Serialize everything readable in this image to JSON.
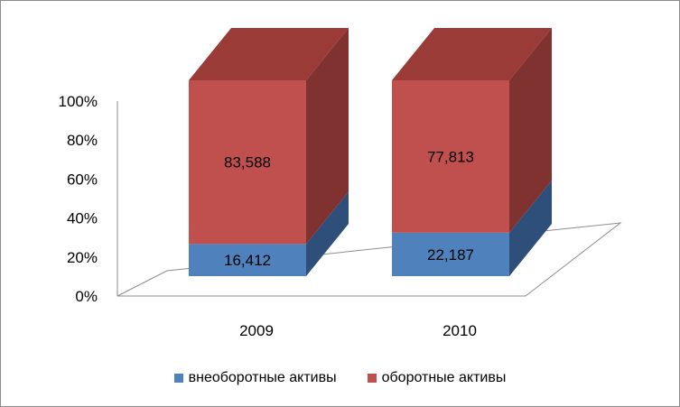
{
  "chart_data": {
    "type": "bar",
    "stacked": "percent",
    "three_d": true,
    "categories": [
      "2009",
      "2010"
    ],
    "series": [
      {
        "name": "внеоборотные активы",
        "values": [
          16.412,
          22.187
        ],
        "labels": [
          "16,412",
          "22,187"
        ],
        "color": "#4f81bd",
        "side_color": "#2e4f7a",
        "top_color": "#3a6596"
      },
      {
        "name": "оборотные активы",
        "values": [
          83.588,
          77.813
        ],
        "labels": [
          "83,588",
          "77,813"
        ],
        "color": "#c0504d",
        "side_color": "#7f3230",
        "top_color": "#9b3b38"
      }
    ],
    "yticks": [
      "0%",
      "20%",
      "40%",
      "60%",
      "80%",
      "100%"
    ],
    "ylim": [
      0,
      100
    ],
    "grid": false,
    "legend": "bottom"
  }
}
